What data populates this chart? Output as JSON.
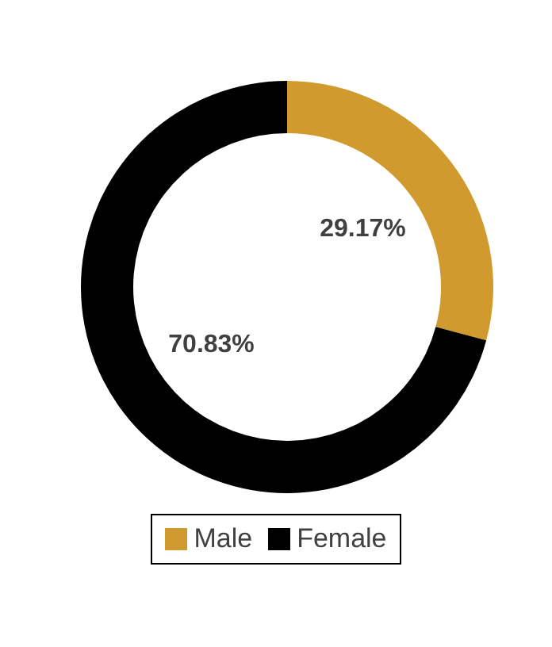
{
  "chart_data": {
    "type": "donut",
    "categories": [
      "Male",
      "Female"
    ],
    "values": [
      29.17,
      70.83
    ],
    "colors": [
      "#d09a2e",
      "#000000"
    ],
    "value_labels": [
      "29.17%",
      "70.83%"
    ],
    "legend": "bottom"
  }
}
